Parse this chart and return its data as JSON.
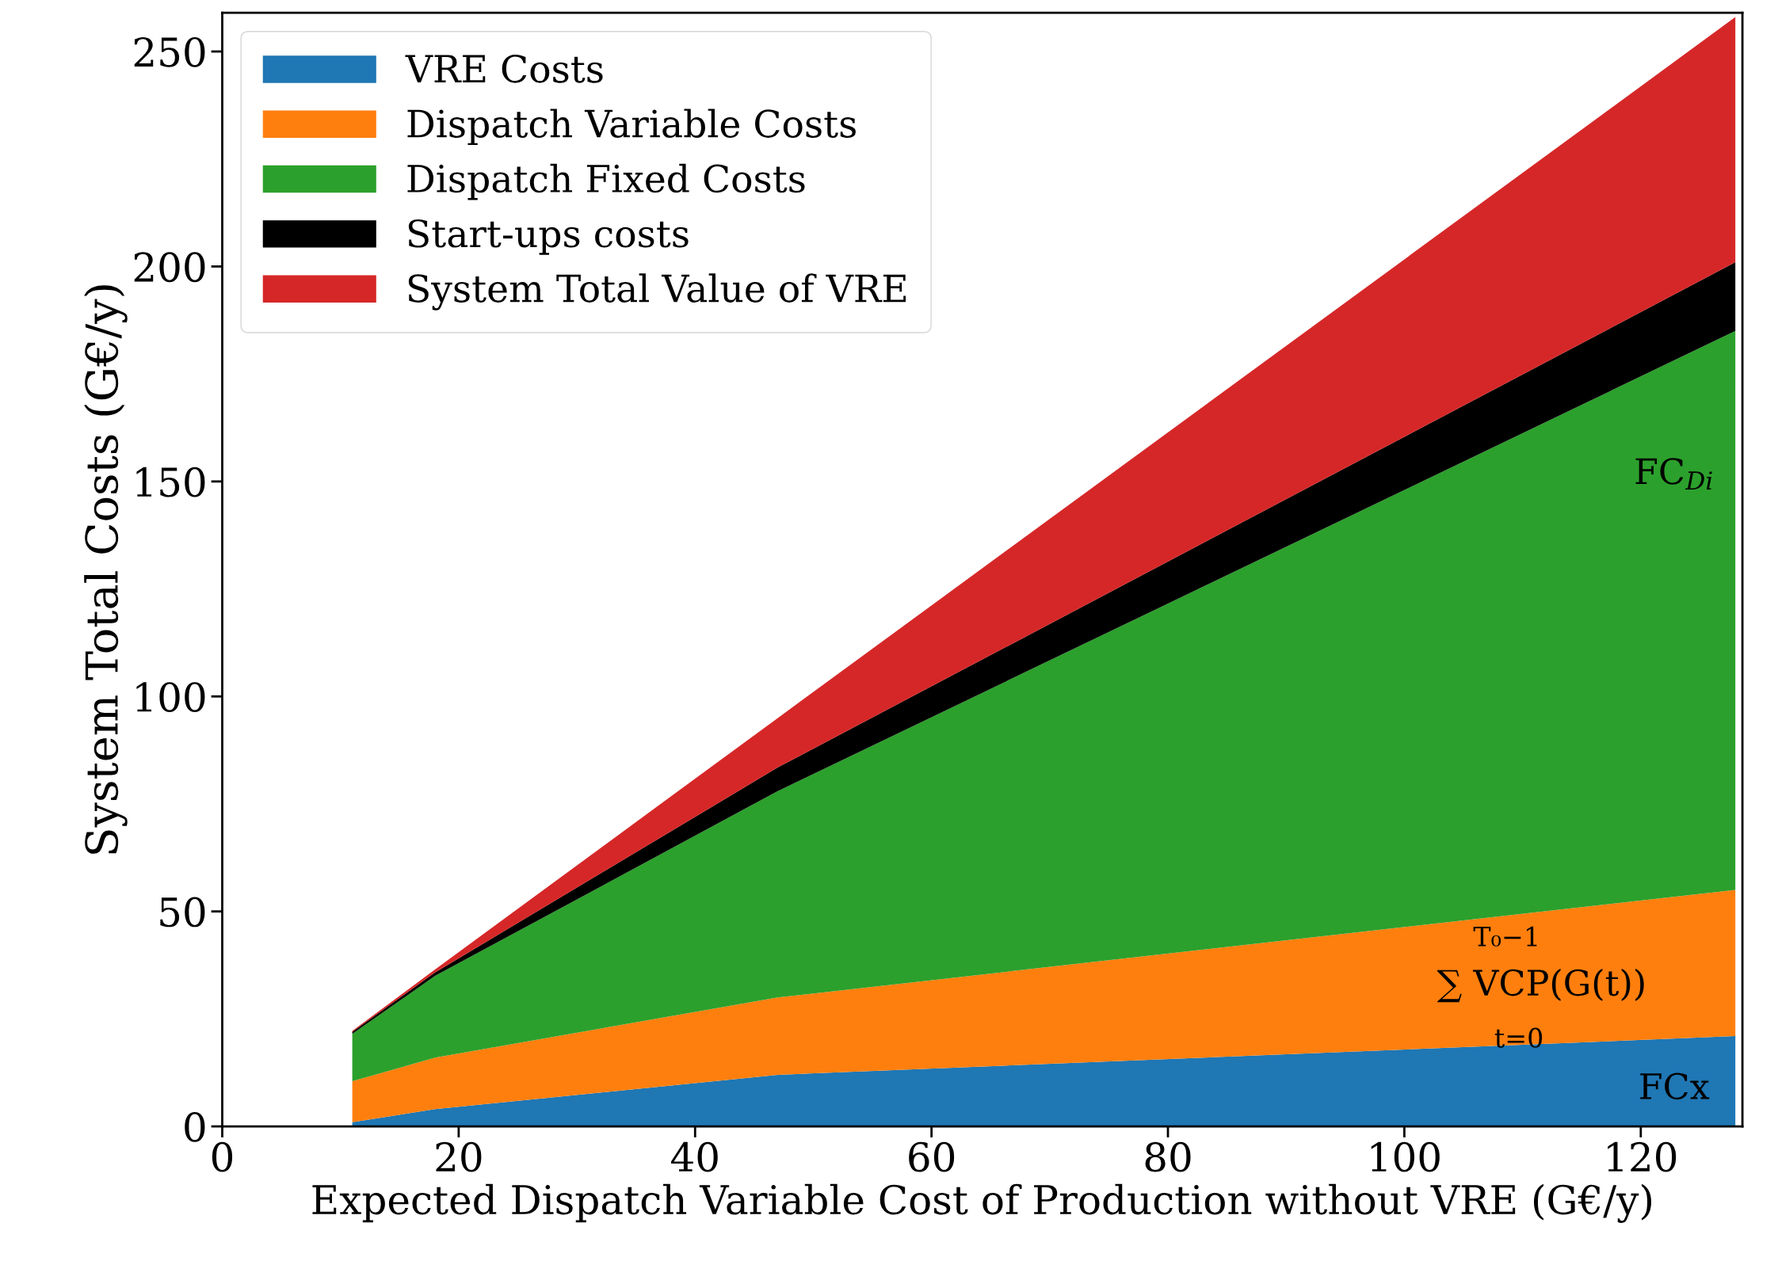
{
  "chart_data": {
    "type": "area",
    "stacked": true,
    "xlabel": "Expected Dispatch Variable Cost of Production without VRE (G€/y)",
    "ylabel": "System Total Costs (G€/y)",
    "x": [
      11,
      18,
      47,
      128
    ],
    "series": [
      {
        "name": "VRE Costs",
        "color": "#1f77b4",
        "values": [
          1,
          4,
          12,
          21
        ]
      },
      {
        "name": "Dispatch Variable Costs",
        "color": "#ff7f0e",
        "values": [
          9.5,
          12,
          18,
          34
        ]
      },
      {
        "name": "Dispatch Fixed Costs",
        "color": "#2ca02c",
        "values": [
          11,
          19,
          48,
          130
        ]
      },
      {
        "name": "Start-ups costs",
        "color": "#000000",
        "values": [
          0.5,
          0.8,
          5.5,
          16
        ]
      },
      {
        "name": "System Total Value of VRE",
        "color": "#d62728",
        "values": [
          0.2,
          0.7,
          11.5,
          57
        ]
      }
    ],
    "xlim": [
      0,
      128.6
    ],
    "ylim": [
      0,
      259
    ],
    "xticks": [
      0,
      20,
      40,
      60,
      80,
      100,
      120
    ],
    "yticks": [
      0,
      50,
      100,
      150,
      200,
      250
    ],
    "grid": false,
    "legend": "top left",
    "annotations": [
      "FC$_{Di}$",
      "T₀−1",
      "∑ VCP(G(t))",
      "t=0",
      "FCx"
    ]
  }
}
